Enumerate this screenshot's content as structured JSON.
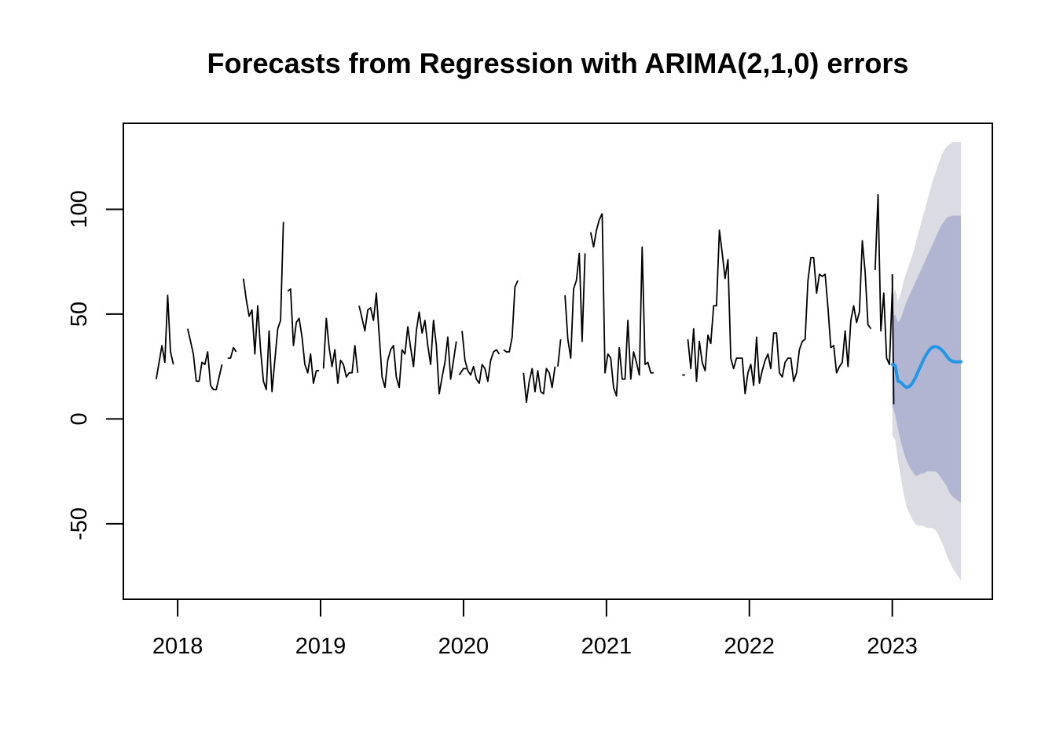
{
  "chart_data": {
    "type": "line",
    "title": "Forecasts from Regression with ARIMA(2,1,0) errors",
    "xlabel": "",
    "ylabel": "",
    "xlim": [
      2017.62,
      2023.7
    ],
    "ylim": [
      -86,
      141
    ],
    "grid": false,
    "legend": "none",
    "x_ticks": [
      2018,
      2019,
      2020,
      2021,
      2022,
      2023
    ],
    "x_tick_labels": [
      "2018",
      "2019",
      "2020",
      "2021",
      "2022",
      "2023"
    ],
    "y_ticks": [
      -50,
      0,
      50,
      100
    ],
    "y_tick_labels": [
      "-50",
      "0",
      "50",
      "100"
    ],
    "colors": {
      "observed": "#000000",
      "forecast": "#2297e6",
      "interval_95": "#dbdbe3",
      "interval_80": "#b1b5d1",
      "frame": "#000000"
    },
    "series": [
      {
        "role": "observed",
        "segments": [
          {
            "x": [
              2017.85,
              2017.87,
              2017.89,
              2017.91,
              2017.93,
              2017.95,
              2017.97
            ],
            "y": [
              19,
              27,
              35,
              27,
              59,
              32,
              26
            ]
          },
          {
            "x": [
              2018.07,
              2018.09,
              2018.11,
              2018.13,
              2018.15,
              2018.17,
              2018.19,
              2018.21,
              2018.23,
              2018.25,
              2018.27,
              2018.29,
              2018.31
            ],
            "y": [
              43,
              37,
              31,
              18,
              18,
              27,
              26,
              32,
              16,
              14,
              14,
              20,
              26
            ]
          },
          {
            "x": [
              2018.35,
              2018.37,
              2018.39,
              2018.41
            ],
            "y": [
              29,
              29,
              34,
              32
            ]
          },
          {
            "x": [
              2018.46,
              2018.48,
              2018.5,
              2018.52,
              2018.54,
              2018.56,
              2018.58,
              2018.6,
              2018.62,
              2018.64,
              2018.66,
              2018.68,
              2018.7,
              2018.72,
              2018.74
            ],
            "y": [
              67,
              57,
              49,
              52,
              31,
              54,
              33,
              18,
              14,
              42,
              13,
              28,
              43,
              47,
              94
            ]
          },
          {
            "x": [
              2018.77,
              2018.79,
              2018.81,
              2018.83,
              2018.85,
              2018.87,
              2018.89,
              2018.91,
              2018.93,
              2018.95,
              2018.97,
              2018.99
            ],
            "y": [
              61,
              62,
              35,
              46,
              48,
              39,
              26,
              22,
              31,
              17,
              23,
              23
            ]
          },
          {
            "x": [
              2019.02,
              2019.04,
              2019.06,
              2019.08,
              2019.1,
              2019.12,
              2019.14,
              2019.16,
              2019.18,
              2019.2,
              2019.22,
              2019.24,
              2019.26
            ],
            "y": [
              24,
              48,
              34,
              25,
              33,
              17,
              28,
              26,
              20,
              22,
              22,
              35,
              22
            ]
          },
          {
            "x": [
              2019.27,
              2019.29,
              2019.31,
              2019.33,
              2019.35,
              2019.37,
              2019.39,
              2019.41,
              2019.43,
              2019.45,
              2019.47,
              2019.49,
              2019.51,
              2019.53,
              2019.55,
              2019.57,
              2019.59,
              2019.61,
              2019.63,
              2019.65,
              2019.67,
              2019.69,
              2019.71,
              2019.73,
              2019.75,
              2019.77,
              2019.79,
              2019.81,
              2019.83,
              2019.85,
              2019.87,
              2019.89,
              2019.91,
              2019.93,
              2019.95
            ],
            "y": [
              54,
              48,
              42,
              52,
              53,
              47,
              60,
              40,
              20,
              15,
              28,
              33,
              35,
              20,
              15,
              33,
              31,
              44,
              34,
              25,
              42,
              51,
              41,
              47,
              35,
              26,
              47,
              35,
              12,
              20,
              27,
              39,
              19,
              28,
              37
            ]
          },
          {
            "x": [
              2019.97,
              2020.0,
              2020.02
            ],
            "y": [
              21,
              24,
              24
            ]
          },
          {
            "x": [
              2019.99,
              2020.01,
              2020.03,
              2020.05,
              2020.07,
              2020.09,
              2020.11,
              2020.13,
              2020.15,
              2020.17,
              2020.19,
              2020.21,
              2020.23,
              2020.25
            ],
            "y": [
              42,
              28,
              23,
              21,
              25,
              19,
              17,
              26,
              24,
              18,
              28,
              32,
              33,
              31
            ]
          },
          {
            "x": [
              2020.28,
              2020.3,
              2020.32,
              2020.34,
              2020.36,
              2020.38
            ],
            "y": [
              33,
              32,
              32,
              39,
              63,
              66
            ]
          },
          {
            "x": [
              2020.42,
              2020.44,
              2020.46,
              2020.48,
              2020.5,
              2020.52,
              2020.54,
              2020.56,
              2020.58,
              2020.6,
              2020.62,
              2020.64
            ],
            "y": [
              22,
              8,
              18,
              24,
              13,
              23,
              13,
              12,
              24,
              22,
              15,
              25
            ]
          },
          {
            "x": [
              2020.66,
              2020.68
            ],
            "y": [
              25,
              38
            ]
          },
          {
            "x": [
              2020.71,
              2020.73,
              2020.75,
              2020.77,
              2020.79,
              2020.81,
              2020.83,
              2020.85
            ],
            "y": [
              59,
              38,
              29,
              62,
              66,
              79,
              37,
              79
            ]
          },
          {
            "x": [
              2020.89,
              2020.91,
              2020.93,
              2020.95,
              2020.97
            ],
            "y": [
              89,
              82,
              90,
              95,
              98
            ]
          },
          {
            "x": [
              2020.97,
              2020.99,
              2021.01,
              2021.03,
              2021.05,
              2021.07,
              2021.09,
              2021.11,
              2021.13,
              2021.15,
              2021.17,
              2021.19,
              2021.21,
              2021.23,
              2021.25,
              2021.27,
              2021.29,
              2021.31,
              2021.33
            ],
            "y": [
              98,
              22,
              31,
              29,
              15,
              11,
              34,
              19,
              19,
              47,
              19,
              32,
              27,
              21,
              82,
              26,
              27,
              22,
              22
            ]
          },
          {
            "x": [
              2021.53,
              2021.55
            ],
            "y": [
              21,
              21
            ]
          },
          {
            "x": [
              2021.57,
              2021.59,
              2021.61,
              2021.63,
              2021.65,
              2021.67,
              2021.69,
              2021.71,
              2021.73,
              2021.75,
              2021.77,
              2021.79,
              2021.81,
              2021.83,
              2021.85,
              2021.87,
              2021.89,
              2021.91,
              2021.93,
              2021.95,
              2021.97,
              2021.99,
              2022.01,
              2022.03,
              2022.05,
              2022.07,
              2022.09,
              2022.11,
              2022.13,
              2022.15,
              2022.17,
              2022.19,
              2022.21,
              2022.23,
              2022.25,
              2022.27,
              2022.29,
              2022.31,
              2022.33,
              2022.35,
              2022.37,
              2022.39,
              2022.41,
              2022.43,
              2022.45,
              2022.47,
              2022.49,
              2022.51,
              2022.53,
              2022.55,
              2022.57,
              2022.59,
              2022.61,
              2022.63,
              2022.65,
              2022.67,
              2022.69,
              2022.71,
              2022.73,
              2022.75,
              2022.77,
              2022.79,
              2022.81
            ],
            "y": [
              38,
              24,
              43,
              18,
              37,
              27,
              23,
              40,
              36,
              54,
              54,
              90,
              79,
              67,
              76,
              29,
              24,
              29,
              29,
              29,
              12,
              22,
              26,
              16,
              39,
              17,
              23,
              28,
              31,
              24,
              41,
              41,
              22,
              20,
              27,
              29,
              29,
              18,
              22,
              33,
              37,
              38,
              66,
              77,
              77,
              60,
              69,
              68,
              69,
              53,
              34,
              35,
              22,
              25,
              27,
              42,
              25,
              47,
              54,
              46,
              51,
              85,
              70
            ]
          },
          {
            "x": [
              2022.81,
              2022.83,
              2022.85
            ],
            "y": [
              70,
              45,
              43
            ]
          },
          {
            "x": [
              2022.88,
              2022.9,
              2022.92,
              2022.94,
              2022.96,
              2022.98,
              2023.0,
              2023.0
            ],
            "y": [
              71,
              107,
              42,
              60,
              29,
              26,
              62,
              69
            ]
          },
          {
            "x": [
              2023.0,
              2023.01
            ],
            "y": [
              69,
              7
            ]
          }
        ]
      },
      {
        "role": "forecast",
        "x": [
          2023.0,
          2023.02,
          2023.04,
          2023.06,
          2023.08,
          2023.1,
          2023.12,
          2023.14,
          2023.16,
          2023.18,
          2023.2,
          2023.22,
          2023.24,
          2023.26,
          2023.28,
          2023.3,
          2023.32,
          2023.34,
          2023.36,
          2023.38,
          2023.4,
          2023.42,
          2023.44,
          2023.46,
          2023.48
        ],
        "y": [
          26,
          25.5,
          18,
          17.5,
          16,
          15,
          15.5,
          17,
          19.5,
          22.5,
          25.5,
          28.5,
          31,
          33,
          34.2,
          34.5,
          34.2,
          33.3,
          31.8,
          30,
          28.3,
          27.5,
          27.2,
          27.2,
          27.3
        ]
      }
    ],
    "intervals": [
      {
        "level": "95%",
        "x": [
          2023.0,
          2023.02,
          2023.04,
          2023.06,
          2023.08,
          2023.1,
          2023.12,
          2023.14,
          2023.16,
          2023.18,
          2023.2,
          2023.22,
          2023.24,
          2023.26,
          2023.28,
          2023.3,
          2023.32,
          2023.34,
          2023.36,
          2023.38,
          2023.4,
          2023.42,
          2023.44,
          2023.46,
          2023.48
        ],
        "upper": [
          58,
          62,
          56,
          60,
          66,
          70,
          74,
          78,
          83,
          88,
          93,
          98,
          103,
          108,
          113,
          117,
          121,
          125,
          128,
          130,
          131,
          132,
          132,
          132,
          132
        ],
        "lower": [
          -8,
          -10,
          -20,
          -28,
          -36,
          -42,
          -45,
          -48,
          -50,
          -51,
          -51,
          -51,
          -52,
          -52,
          -52,
          -53,
          -55,
          -58,
          -61,
          -65,
          -68,
          -71,
          -73,
          -75,
          -77
        ]
      },
      {
        "level": "80%",
        "x": [
          2023.0,
          2023.02,
          2023.04,
          2023.06,
          2023.08,
          2023.1,
          2023.12,
          2023.14,
          2023.16,
          2023.18,
          2023.2,
          2023.22,
          2023.24,
          2023.26,
          2023.28,
          2023.3,
          2023.32,
          2023.34,
          2023.36,
          2023.38,
          2023.4,
          2023.42,
          2023.44,
          2023.46,
          2023.48
        ],
        "upper": [
          48,
          50,
          46,
          48,
          52,
          56,
          59,
          62,
          65,
          68,
          71,
          74,
          77,
          80,
          83,
          86,
          89,
          92,
          94,
          96,
          96.5,
          97,
          97,
          97,
          97
        ],
        "lower": [
          6,
          2,
          -5,
          -11,
          -16,
          -20,
          -23,
          -25,
          -27,
          -27,
          -26,
          -26,
          -25,
          -25,
          -25,
          -25,
          -26,
          -28,
          -30,
          -32,
          -35,
          -37,
          -38,
          -39,
          -40
        ]
      }
    ]
  }
}
